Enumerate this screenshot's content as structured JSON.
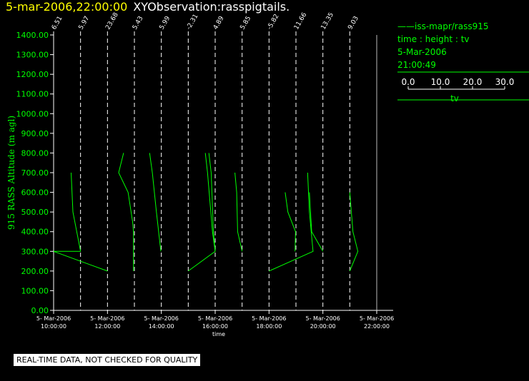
{
  "title": {
    "date": "5-mar-2006,22:00:00",
    "name": "XYObservation:rasspigtails."
  },
  "legend": {
    "series_line": "iss-mapr/rass915",
    "line2": "time : height : tv",
    "line3": "5-Mar-2006",
    "line4": "21:00:49",
    "scale_ticks": [
      "0.0",
      "10.0",
      "20.0",
      "30.0"
    ],
    "scale_label": "tv"
  },
  "note": "REAL-TIME DATA, NOT CHECKED FOR QUALITY",
  "colors": {
    "background": "#000000",
    "trace": "#00ff00",
    "axis": "#ffffff",
    "date": "#ffff00"
  },
  "chart_data": {
    "type": "line",
    "title": "XYObservation:rasspigtails.",
    "xlabel": "time",
    "ylabel": "915 RASS Altitude (m agl)",
    "ylim": [
      0,
      1400
    ],
    "xlim": [
      "2006-03-05 09:00",
      "2006-03-05 22:00"
    ],
    "y_ticks": [
      "0.00",
      "100.00",
      "200.00",
      "300.00",
      "400.00",
      "500.00",
      "600.00",
      "700.00",
      "800.00",
      "900.00",
      "1000.00",
      "1100.00",
      "1200.00",
      "1300.00",
      "1400.00"
    ],
    "x_ticks": [
      {
        "time": "2006-03-05 10:00",
        "l1": "5- Mar-2006",
        "l2": "10:00:00"
      },
      {
        "time": "2006-03-05 12:00",
        "l1": "5- Mar-2006",
        "l2": "12:00:00"
      },
      {
        "time": "2006-03-05 14:00",
        "l1": "5- Mar-2006",
        "l2": "14:00:00"
      },
      {
        "time": "2006-03-05 16:00",
        "l1": "5- Mar-2006",
        "l2": "16:00:00"
      },
      {
        "time": "2006-03-05 18:00",
        "l1": "5- Mar-2006",
        "l2": "18:00:00"
      },
      {
        "time": "2006-03-05 20:00",
        "l1": "5- Mar-2006",
        "l2": "20:00:00"
      },
      {
        "time": "2006-03-05 22:00",
        "l1": "5- Mar-2006",
        "l2": "22:00:00"
      }
    ],
    "profile_baselines": [
      {
        "time": "2006-03-05 10:00",
        "label": "6.51"
      },
      {
        "time": "2006-03-05 11:00",
        "label": "5.97"
      },
      {
        "time": "2006-03-05 12:00",
        "label": "23.68"
      },
      {
        "time": "2006-03-05 13:00",
        "label": "5.43"
      },
      {
        "time": "2006-03-05 14:00",
        "label": "5.99"
      },
      {
        "time": "2006-03-05 15:00",
        "label": "-2.31"
      },
      {
        "time": "2006-03-05 16:00",
        "label": "4.89"
      },
      {
        "time": "2006-03-05 17:00",
        "label": "5.85"
      },
      {
        "time": "2006-03-05 18:00",
        "label": "-5.82"
      },
      {
        "time": "2006-03-05 19:00",
        "label": "11.66"
      },
      {
        "time": "2006-03-05 20:00",
        "label": "13.35"
      },
      {
        "time": "2006-03-05 21:00",
        "label": "9.03"
      }
    ],
    "series": [
      {
        "name": "iss-mapr/rass915",
        "points": [
          [
            "2006-03-05 10:39",
            700
          ],
          [
            "2006-03-05 10:43",
            500
          ],
          [
            "2006-03-05 11:00",
            300
          ],
          [
            "2006-03-05 10:00",
            300
          ],
          [
            "2006-03-05 12:00",
            200
          ]
        ]
      },
      {
        "name": "iss-mapr/rass915",
        "points": [
          [
            "2006-03-05 12:36",
            800
          ],
          [
            "2006-03-05 12:25",
            700
          ],
          [
            "2006-03-05 12:46",
            600
          ],
          [
            "2006-03-05 12:56",
            450
          ],
          [
            "2006-03-05 12:58",
            400
          ],
          [
            "2006-03-05 12:58",
            200
          ]
        ]
      },
      {
        "name": "iss-mapr/rass915",
        "points": [
          [
            "2006-03-05 13:34",
            800
          ],
          [
            "2006-03-05 13:40",
            700
          ],
          [
            "2006-03-05 13:49",
            500
          ],
          [
            "2006-03-05 13:59",
            300
          ]
        ]
      },
      {
        "name": "iss-mapr/rass915",
        "points": [
          [
            "2006-03-05 15:38",
            800
          ],
          [
            "2006-03-05 15:43",
            700
          ],
          [
            "2006-03-05 15:54",
            400
          ],
          [
            "2006-03-05 16:00",
            300
          ],
          [
            "2006-03-05 15:00",
            200
          ]
        ]
      },
      {
        "name": "iss-mapr/rass915",
        "points": [
          [
            "2006-03-05 15:46",
            800
          ],
          [
            "2006-03-05 15:51",
            700
          ],
          [
            "2006-03-05 15:56",
            400
          ],
          [
            "2006-03-05 16:00",
            300
          ]
        ]
      },
      {
        "name": "iss-mapr/rass915",
        "points": [
          [
            "2006-03-05 16:44",
            700
          ],
          [
            "2006-03-05 16:48",
            600
          ],
          [
            "2006-03-05 16:50",
            400
          ],
          [
            "2006-03-05 17:00",
            300
          ]
        ]
      },
      {
        "name": "iss-mapr/rass915",
        "points": [
          [
            "2006-03-05 18:36",
            600
          ],
          [
            "2006-03-05 18:42",
            500
          ],
          [
            "2006-03-05 18:59",
            400
          ],
          [
            "2006-03-05 18:58",
            300
          ]
        ]
      },
      {
        "name": "iss-mapr/rass915",
        "points": [
          [
            "2006-03-05 18:00",
            200
          ],
          [
            "2006-03-05 19:38",
            300
          ],
          [
            "2006-03-05 19:30",
            500
          ],
          [
            "2006-03-05 19:26",
            700
          ]
        ]
      },
      {
        "name": "iss-mapr/rass915",
        "points": [
          [
            "2006-03-05 19:30",
            600
          ],
          [
            "2006-03-05 19:35",
            400
          ],
          [
            "2006-03-05 20:00",
            300
          ]
        ]
      },
      {
        "name": "iss-mapr/rass915",
        "points": [
          [
            "2006-03-05 21:00",
            600
          ],
          [
            "2006-03-05 21:07",
            400
          ],
          [
            "2006-03-05 21:18",
            300
          ],
          [
            "2006-03-05 21:00",
            200
          ]
        ]
      }
    ],
    "grid": false,
    "legend_position": "right"
  }
}
